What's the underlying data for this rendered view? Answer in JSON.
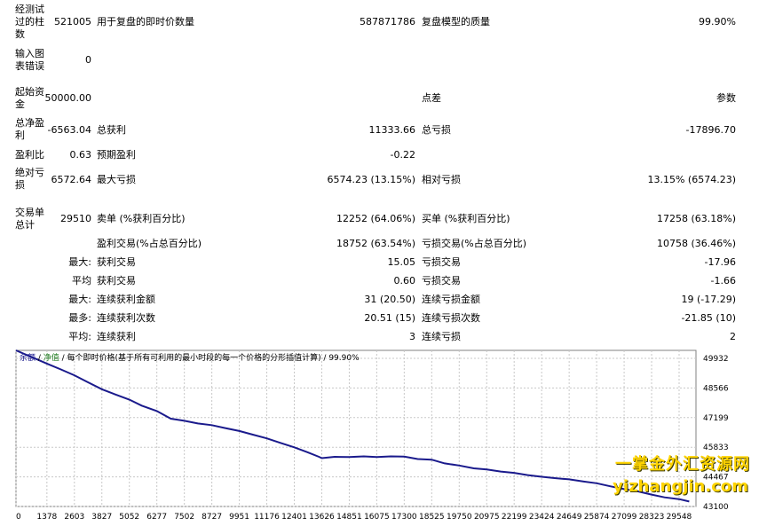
{
  "report": {
    "bars_label": "经测试过的柱数",
    "bars_value": "521005",
    "ticks_label": "用于复盘的即时价数量",
    "ticks_value": "587871786",
    "quality_label": "复盘模型的质量",
    "quality_value": "99.90%",
    "mismatch_label": "输入图表错误",
    "mismatch_value": "0",
    "deposit_label": "起始资金",
    "deposit_value": "50000.00",
    "spread_label": "点差",
    "spread_value": "参数",
    "net_profit_label": "总净盈利",
    "net_profit_value": "-6563.04",
    "gross_profit_label": "总获利",
    "gross_profit_value": "11333.66",
    "gross_loss_label": "总亏损",
    "gross_loss_value": "-17896.70",
    "profit_factor_label": "盈利比",
    "profit_factor_value": "0.63",
    "expected_payoff_label": "预期盈利",
    "expected_payoff_value": "-0.22",
    "abs_dd_label": "绝对亏损",
    "abs_dd_value": "6572.64",
    "max_dd_label": "最大亏损",
    "max_dd_value": "6574.23 (13.15%)",
    "rel_dd_label": "相对亏损",
    "rel_dd_value": "13.15% (6574.23)",
    "total_trades_label": "交易单总计",
    "total_trades_value": "29510",
    "short_label": "卖单 (%获利百分比)",
    "short_value": "12252 (64.06%)",
    "long_label": "买单 (%获利百分比)",
    "long_value": "17258 (63.18%)",
    "profit_trades_label": "盈利交易(%占总百分比)",
    "profit_trades_value": "18752 (63.54%)",
    "loss_trades_label": "亏损交易(%占总百分比)",
    "loss_trades_value": "10758 (36.46%)",
    "largest_prefix": "最大:",
    "largest_profit_label": "获利交易",
    "largest_profit_value": "15.05",
    "largest_loss_label": "亏损交易",
    "largest_loss_value": "-17.96",
    "average_prefix": "平均",
    "average_profit_label": "获利交易",
    "average_profit_value": "0.60",
    "average_loss_label": "亏损交易",
    "average_loss_value": "-1.66",
    "max_prefix": "最大:",
    "max_consec_wins_label": "连续获利金额",
    "max_consec_wins_value": "31 (20.50)",
    "max_consec_losses_label": "连续亏损金额",
    "max_consec_losses_value": "19 (-17.29)",
    "most_prefix": "最多:",
    "max_consec_profit_label": "连续获利次数",
    "max_consec_profit_value": "20.51 (15)",
    "max_consec_loss_label": "连续亏损次数",
    "max_consec_loss_value": "-21.85 (10)",
    "avg_prefix": "平均:",
    "avg_consec_wins_label": "连续获利",
    "avg_consec_wins_value": "3",
    "avg_consec_losses_label": "连续亏损",
    "avg_consec_losses_value": "2"
  },
  "chart_legend": {
    "balance": "余额",
    "sep1": " / ",
    "equity": "净值",
    "rest": " / 每个即时价格(基于所有可利用的最小时段的每一个价格的分形插值计算) / 99.90%"
  },
  "watermark": {
    "line1": "一掌金外汇资源网",
    "line2": "yizhangjin.com"
  },
  "colors": {
    "balance": "#1a1a8c",
    "equity": "#1e7a1e",
    "grid": "#c8c8c8",
    "watermark": "#ffd400"
  },
  "chart_data": {
    "type": "line",
    "title": "",
    "xlabel": "",
    "ylabel": "",
    "x_ticks": [
      "0",
      "1378",
      "2603",
      "3827",
      "5052",
      "6277",
      "7502",
      "8727",
      "9951",
      "11176",
      "12401",
      "13626",
      "14851",
      "16075",
      "17300",
      "18525",
      "19750",
      "20975",
      "22199",
      "23424",
      "24649",
      "25874",
      "27099",
      "28323",
      "29548"
    ],
    "y_ticks": [
      "49932",
      "48566",
      "47199",
      "45833",
      "44467",
      "43100"
    ],
    "xlim": [
      0,
      30300
    ],
    "ylim": [
      43100,
      50300
    ],
    "series": [
      {
        "x": [
          0,
          500,
          1000,
          1378,
          2000,
          2603,
          3200,
          3827,
          4400,
          5052,
          5600,
          6277,
          6900,
          7502,
          8100,
          8727,
          9300,
          9951,
          10500,
          11176,
          11800,
          12401,
          13000,
          13500,
          13626,
          14200,
          14851,
          15500,
          16075,
          16700,
          17300,
          17900,
          18525,
          19100,
          19750,
          20400,
          20975,
          21600,
          22199,
          22800,
          23424,
          24000,
          24649,
          25300,
          25874,
          26500,
          27099,
          27700,
          28323,
          28900,
          29548,
          30000
        ],
        "y": [
          50300,
          50080,
          49860,
          49690,
          49420,
          49150,
          48830,
          48510,
          48280,
          48030,
          47750,
          47500,
          47150,
          47050,
          46930,
          46850,
          46720,
          46580,
          46430,
          46240,
          46030,
          45830,
          45600,
          45390,
          45330,
          45390,
          45380,
          45410,
          45380,
          45410,
          45400,
          45290,
          45260,
          45090,
          44990,
          44860,
          44810,
          44710,
          44650,
          44550,
          44470,
          44410,
          44350,
          44250,
          44170,
          44030,
          43900,
          43800,
          43650,
          43520,
          43440,
          43330
        ]
      }
    ]
  }
}
